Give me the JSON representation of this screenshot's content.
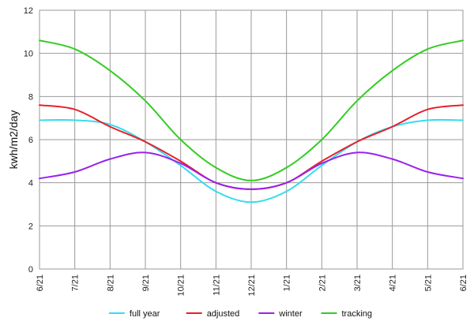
{
  "chart_data": {
    "type": "line",
    "title": "",
    "xlabel": "",
    "ylabel": "kwh/m2/day",
    "categories": [
      "6/21",
      "7/21",
      "8/21",
      "9/21",
      "10/21",
      "11/21",
      "12/21",
      "1/21",
      "2/21",
      "3/21",
      "4/21",
      "5/21",
      "6/21"
    ],
    "ylim": [
      0,
      12
    ],
    "yticks": [
      0,
      2,
      4,
      6,
      8,
      10,
      12
    ],
    "grid": true,
    "legend_position": "bottom",
    "series": [
      {
        "name": "full year",
        "color": "#33ddee",
        "values": [
          6.9,
          6.9,
          6.7,
          5.9,
          4.8,
          3.6,
          3.1,
          3.6,
          4.8,
          5.9,
          6.6,
          6.9,
          6.9
        ]
      },
      {
        "name": "adjusted",
        "color": "#e8202a",
        "values": [
          7.6,
          7.4,
          6.6,
          5.9,
          5.0,
          4.0,
          3.7,
          4.0,
          5.0,
          5.9,
          6.6,
          7.4,
          7.6
        ]
      },
      {
        "name": "winter",
        "color": "#9a22ee",
        "values": [
          4.2,
          4.5,
          5.1,
          5.4,
          4.9,
          4.0,
          3.7,
          4.0,
          4.9,
          5.4,
          5.1,
          4.5,
          4.2
        ]
      },
      {
        "name": "tracking",
        "color": "#33cc22",
        "values": [
          10.6,
          10.2,
          9.2,
          7.8,
          6.0,
          4.7,
          4.1,
          4.7,
          6.0,
          7.8,
          9.2,
          10.2,
          10.6
        ]
      }
    ]
  }
}
